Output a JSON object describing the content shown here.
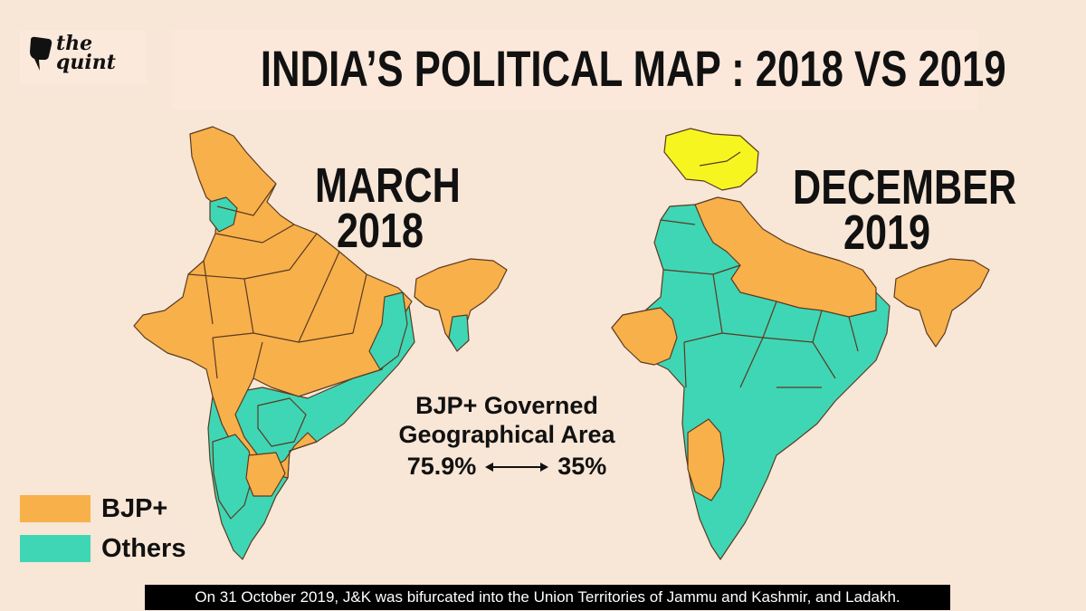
{
  "brand": {
    "line1": "the",
    "line2": "quint"
  },
  "title": "INDIA’S POLITICAL MAP : 2018 VS 2019",
  "left_map": {
    "label_line1": "MARCH",
    "label_line2": "2018"
  },
  "right_map": {
    "label_line1": "DECEMBER",
    "label_line2": "2019"
  },
  "stat": {
    "line1": "BJP+ Governed",
    "line2": "Geographical Area",
    "value_2018": "75.9%",
    "value_2019": "35%"
  },
  "legend": [
    {
      "label": "BJP+",
      "color": "#f8b04a"
    },
    {
      "label": "Others",
      "color": "#3fd6b5"
    }
  ],
  "colors": {
    "bjp": "#f8b04a",
    "others": "#3fd6b5",
    "ut": "#f7f520",
    "border": "#5a3a22"
  },
  "caption": "On 31 October 2019, J&K was bifurcated into the Union Territories of Jammu and Kashmir, and Ladakh."
}
